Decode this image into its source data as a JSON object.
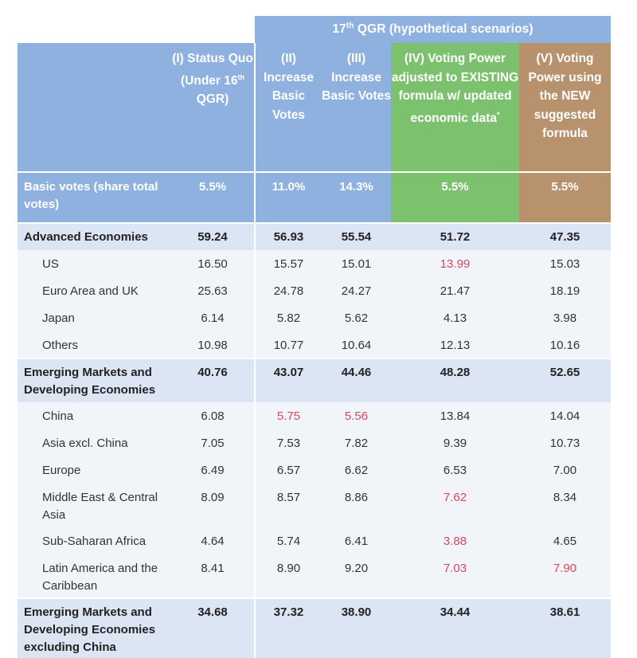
{
  "chart_data": {
    "type": "table",
    "super_header": {
      "prefix": "17",
      "sup": "th",
      "suffix": " QGR (hypothetical scenarios)"
    },
    "columns": [
      {
        "line1": "(I) Status Quo (Under 16",
        "sup": "th",
        "line2": " QGR)"
      },
      {
        "line1": "(II) Increase Basic Votes"
      },
      {
        "line1": "(III) Increase Basic Votes"
      },
      {
        "line1": "(IV) Voting Power adjusted to EXISTING formula w/ updated economic data",
        "sup": "*"
      },
      {
        "line1": "(V) Voting Power using the NEW suggested formula"
      }
    ],
    "basic_votes": {
      "label": "Basic votes (share total votes)",
      "values": [
        "5.5%",
        "11.0%",
        "14.3%",
        "5.5%",
        "5.5%"
      ]
    },
    "rows": [
      {
        "label": "Advanced Economies",
        "kind": "group",
        "values": [
          "59.24",
          "56.93",
          "55.54",
          "51.72",
          "47.35"
        ],
        "highlight": []
      },
      {
        "label": "US",
        "kind": "sub",
        "values": [
          "16.50",
          "15.57",
          "15.01",
          "13.99",
          "15.03"
        ],
        "highlight": [
          3
        ]
      },
      {
        "label": "Euro Area and UK",
        "kind": "sub",
        "values": [
          "25.63",
          "24.78",
          "24.27",
          "21.47",
          "18.19"
        ],
        "highlight": []
      },
      {
        "label": "Japan",
        "kind": "sub",
        "values": [
          "6.14",
          "5.82",
          "5.62",
          "4.13",
          "3.98"
        ],
        "highlight": []
      },
      {
        "label": "Others",
        "kind": "sub",
        "values": [
          "10.98",
          "10.77",
          "10.64",
          "12.13",
          "10.16"
        ],
        "highlight": []
      },
      {
        "label": "Emerging Markets and Developing Economies",
        "kind": "group",
        "values": [
          "40.76",
          "43.07",
          "44.46",
          "48.28",
          "52.65"
        ],
        "highlight": []
      },
      {
        "label": "China",
        "kind": "sub",
        "values": [
          "6.08",
          "5.75",
          "5.56",
          "13.84",
          "14.04"
        ],
        "highlight": [
          1,
          2
        ]
      },
      {
        "label": "Asia excl. China",
        "kind": "sub",
        "values": [
          "7.05",
          "7.53",
          "7.82",
          "9.39",
          "10.73"
        ],
        "highlight": []
      },
      {
        "label": "Europe",
        "kind": "sub",
        "values": [
          "6.49",
          "6.57",
          "6.62",
          "6.53",
          "7.00"
        ],
        "highlight": []
      },
      {
        "label": "Middle East & Central Asia",
        "kind": "sub",
        "values": [
          "8.09",
          "8.57",
          "8.86",
          "7.62",
          "8.34"
        ],
        "highlight": [
          3
        ]
      },
      {
        "label": "Sub-Saharan Africa",
        "kind": "sub",
        "values": [
          "4.64",
          "5.74",
          "6.41",
          "3.88",
          "4.65"
        ],
        "highlight": [
          3
        ]
      },
      {
        "label": "Latin America and the Caribbean",
        "kind": "sub",
        "values": [
          "8.41",
          "8.90",
          "9.20",
          "7.03",
          "7.90"
        ],
        "highlight": [
          3,
          4
        ]
      },
      {
        "label": "Emerging Markets and Developing Economies excluding China",
        "kind": "group",
        "values": [
          "34.68",
          "37.32",
          "38.90",
          "34.44",
          "38.61"
        ],
        "highlight": []
      }
    ],
    "colors": {
      "header_blue": "#8fb1df",
      "header_green": "#7cc16d",
      "header_brown": "#b8926c",
      "group_row": "#dbe5f3",
      "sub_row": "#f1f4f9",
      "highlight_red": "#d8485f"
    }
  }
}
